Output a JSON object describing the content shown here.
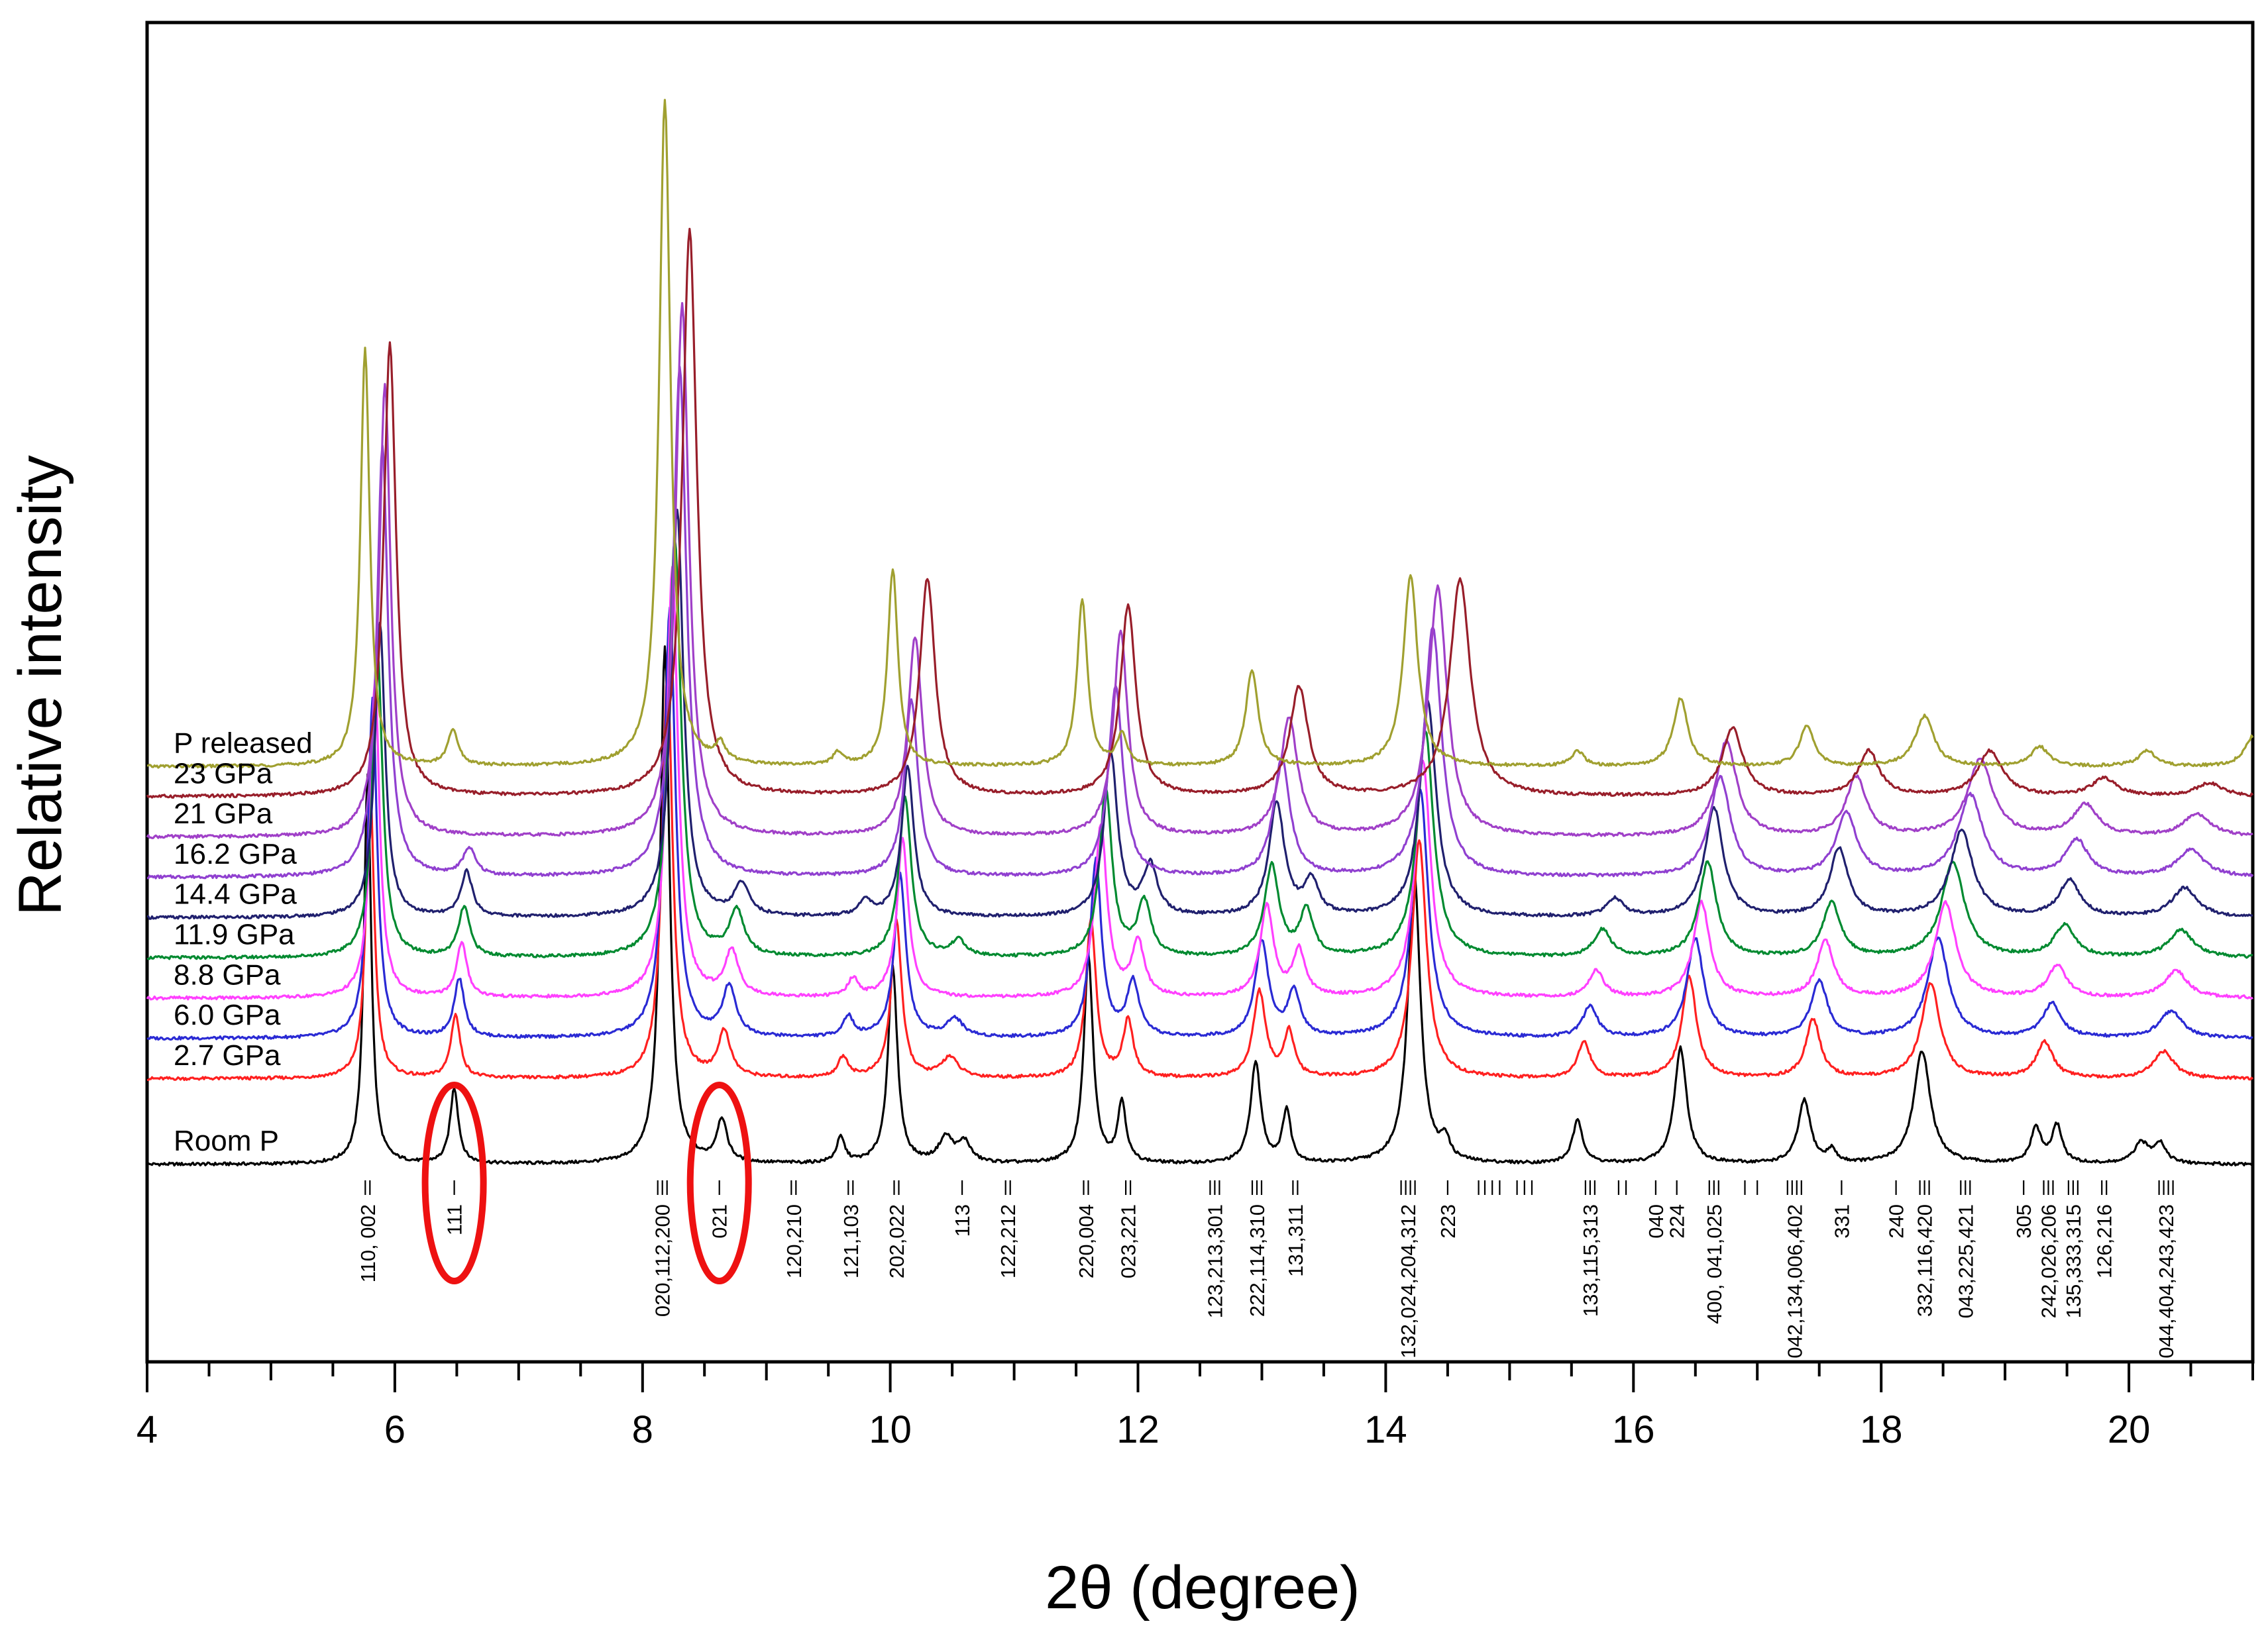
{
  "chart_data": {
    "type": "line",
    "title": "",
    "xlabel": "2θ (degree)",
    "ylabel": "Relative intensity",
    "xlim": [
      4,
      21
    ],
    "x_ticks": [
      4,
      6,
      8,
      10,
      12,
      14,
      16,
      18,
      20
    ],
    "grid": false,
    "legend": "inline-left",
    "y_units": "arbitrary (stacked, offset per trace)",
    "series": [
      {
        "name": "Room P",
        "color": "#000000",
        "offset": 0,
        "scale": 1.0,
        "peaks": [
          [
            5.78,
            1.55,
            0.035
          ],
          [
            6.48,
            0.3,
            0.04
          ],
          [
            8.18,
            2.05,
            0.045
          ],
          [
            8.64,
            0.17,
            0.05
          ],
          [
            9.6,
            0.1,
            0.04
          ],
          [
            10.02,
            0.78,
            0.045
          ],
          [
            10.45,
            0.1,
            0.07
          ],
          [
            10.6,
            0.08,
            0.06
          ],
          [
            11.6,
            0.82,
            0.045
          ],
          [
            11.87,
            0.24,
            0.04
          ],
          [
            12.95,
            0.4,
            0.05
          ],
          [
            13.2,
            0.21,
            0.04
          ],
          [
            14.23,
            1.16,
            0.06
          ],
          [
            14.48,
            0.08,
            0.04
          ],
          [
            15.55,
            0.17,
            0.05
          ],
          [
            16.38,
            0.46,
            0.06
          ],
          [
            17.38,
            0.25,
            0.06
          ],
          [
            17.6,
            0.05,
            0.04
          ],
          [
            18.33,
            0.45,
            0.08
          ],
          [
            19.25,
            0.14,
            0.05
          ],
          [
            19.42,
            0.15,
            0.05
          ],
          [
            20.1,
            0.08,
            0.07
          ],
          [
            20.25,
            0.08,
            0.06
          ]
        ]
      },
      {
        "name": "2.7 GPa",
        "color": "#ff2020",
        "offset": 0.34,
        "scale": 0.9,
        "peaks": [
          [
            5.8,
            1.3,
            0.04
          ],
          [
            6.49,
            0.28,
            0.045
          ],
          [
            8.2,
            1.8,
            0.05
          ],
          [
            8.66,
            0.2,
            0.06
          ],
          [
            9.62,
            0.09,
            0.05
          ],
          [
            10.05,
            0.7,
            0.05
          ],
          [
            10.48,
            0.09,
            0.08
          ],
          [
            11.62,
            0.7,
            0.05
          ],
          [
            11.92,
            0.25,
            0.05
          ],
          [
            12.98,
            0.38,
            0.06
          ],
          [
            13.22,
            0.2,
            0.05
          ],
          [
            14.27,
            1.05,
            0.07
          ],
          [
            15.6,
            0.16,
            0.06
          ],
          [
            16.45,
            0.45,
            0.07
          ],
          [
            17.45,
            0.26,
            0.07
          ],
          [
            18.4,
            0.42,
            0.09
          ],
          [
            19.32,
            0.16,
            0.08
          ],
          [
            20.28,
            0.12,
            0.1
          ]
        ]
      },
      {
        "name": "6.0 GPa",
        "color": "#2a2ad4",
        "offset": 0.5,
        "scale": 0.9,
        "peaks": [
          [
            5.82,
            1.5,
            0.045
          ],
          [
            6.52,
            0.26,
            0.05
          ],
          [
            8.22,
            1.9,
            0.055
          ],
          [
            8.7,
            0.22,
            0.065
          ],
          [
            9.66,
            0.09,
            0.05
          ],
          [
            10.08,
            0.72,
            0.055
          ],
          [
            10.52,
            0.08,
            0.08
          ],
          [
            11.66,
            0.78,
            0.055
          ],
          [
            11.96,
            0.24,
            0.06
          ],
          [
            13.0,
            0.42,
            0.065
          ],
          [
            13.26,
            0.2,
            0.06
          ],
          [
            14.28,
            1.1,
            0.075
          ],
          [
            15.65,
            0.14,
            0.07
          ],
          [
            16.5,
            0.44,
            0.08
          ],
          [
            17.5,
            0.25,
            0.08
          ],
          [
            18.46,
            0.44,
            0.1
          ],
          [
            19.38,
            0.15,
            0.09
          ],
          [
            20.34,
            0.12,
            0.11
          ]
        ]
      },
      {
        "name": "8.8 GPa",
        "color": "#ff40ff",
        "offset": 0.66,
        "scale": 0.9,
        "peaks": [
          [
            5.84,
            1.4,
            0.045
          ],
          [
            6.54,
            0.24,
            0.05
          ],
          [
            8.24,
            1.9,
            0.055
          ],
          [
            8.72,
            0.2,
            0.065
          ],
          [
            9.7,
            0.08,
            0.05
          ],
          [
            10.1,
            0.7,
            0.055
          ],
          [
            11.7,
            0.76,
            0.06
          ],
          [
            12.0,
            0.24,
            0.06
          ],
          [
            13.04,
            0.4,
            0.065
          ],
          [
            13.3,
            0.2,
            0.06
          ],
          [
            14.3,
            1.05,
            0.075
          ],
          [
            15.7,
            0.12,
            0.07
          ],
          [
            16.55,
            0.42,
            0.08
          ],
          [
            17.55,
            0.25,
            0.08
          ],
          [
            18.52,
            0.42,
            0.1
          ],
          [
            19.42,
            0.14,
            0.09
          ],
          [
            20.38,
            0.12,
            0.11
          ]
        ]
      },
      {
        "name": "11.9 GPa",
        "color": "#008a30",
        "offset": 0.82,
        "scale": 0.9,
        "peaks": [
          [
            5.86,
            1.35,
            0.05
          ],
          [
            6.56,
            0.22,
            0.055
          ],
          [
            8.26,
            1.85,
            0.06
          ],
          [
            8.76,
            0.2,
            0.07
          ],
          [
            10.12,
            0.7,
            0.06
          ],
          [
            10.55,
            0.07,
            0.07
          ],
          [
            11.74,
            0.74,
            0.06
          ],
          [
            12.05,
            0.24,
            0.065
          ],
          [
            13.08,
            0.4,
            0.07
          ],
          [
            13.36,
            0.2,
            0.065
          ],
          [
            14.32,
            1.0,
            0.08
          ],
          [
            15.75,
            0.12,
            0.08
          ],
          [
            16.6,
            0.42,
            0.085
          ],
          [
            17.6,
            0.24,
            0.085
          ],
          [
            18.58,
            0.42,
            0.11
          ],
          [
            19.48,
            0.14,
            0.1
          ],
          [
            20.42,
            0.12,
            0.12
          ]
        ]
      },
      {
        "name": "14.4 GPa",
        "color": "#20206e",
        "offset": 0.98,
        "scale": 0.9,
        "peaks": [
          [
            5.88,
            1.3,
            0.05
          ],
          [
            6.58,
            0.2,
            0.055
          ],
          [
            8.28,
            1.8,
            0.06
          ],
          [
            8.8,
            0.14,
            0.07
          ],
          [
            9.8,
            0.07,
            0.06
          ],
          [
            10.14,
            0.66,
            0.06
          ],
          [
            11.78,
            0.72,
            0.065
          ],
          [
            12.1,
            0.22,
            0.07
          ],
          [
            13.12,
            0.5,
            0.075
          ],
          [
            13.4,
            0.15,
            0.07
          ],
          [
            14.34,
            0.95,
            0.08
          ],
          [
            15.85,
            0.08,
            0.08
          ],
          [
            16.65,
            0.48,
            0.09
          ],
          [
            17.66,
            0.3,
            0.09
          ],
          [
            18.65,
            0.38,
            0.11
          ],
          [
            19.52,
            0.16,
            0.1
          ],
          [
            20.45,
            0.13,
            0.12
          ]
        ]
      },
      {
        "name": "16.2 GPa",
        "color": "#9040d0",
        "offset": 1.14,
        "scale": 0.9,
        "peaks": [
          [
            5.9,
            1.9,
            0.055
          ],
          [
            6.6,
            0.12,
            0.06
          ],
          [
            8.3,
            2.25,
            0.065
          ],
          [
            10.17,
            0.78,
            0.065
          ],
          [
            11.82,
            0.84,
            0.07
          ],
          [
            13.16,
            0.52,
            0.08
          ],
          [
            14.38,
            1.1,
            0.085
          ],
          [
            16.7,
            0.44,
            0.1
          ],
          [
            17.72,
            0.28,
            0.1
          ],
          [
            18.72,
            0.36,
            0.12
          ],
          [
            19.58,
            0.16,
            0.11
          ],
          [
            20.5,
            0.12,
            0.13
          ]
        ]
      },
      {
        "name": "21 GPa",
        "color": "#a040c8",
        "offset": 1.3,
        "scale": 0.9,
        "peaks": [
          [
            5.92,
            2.0,
            0.055
          ],
          [
            8.32,
            2.35,
            0.065
          ],
          [
            10.2,
            0.88,
            0.07
          ],
          [
            11.86,
            0.9,
            0.07
          ],
          [
            13.22,
            0.52,
            0.085
          ],
          [
            14.42,
            1.1,
            0.09
          ],
          [
            16.75,
            0.42,
            0.1
          ],
          [
            17.8,
            0.26,
            0.1
          ],
          [
            18.8,
            0.34,
            0.12
          ],
          [
            19.65,
            0.14,
            0.12
          ],
          [
            20.55,
            0.1,
            0.13
          ]
        ]
      },
      {
        "name": "23 GPa",
        "color": "#981e2a",
        "offset": 1.46,
        "scale": 0.9,
        "peaks": [
          [
            5.96,
            2.0,
            0.06
          ],
          [
            8.38,
            2.5,
            0.07
          ],
          [
            10.3,
            0.96,
            0.075
          ],
          [
            11.92,
            0.84,
            0.075
          ],
          [
            13.3,
            0.48,
            0.09
          ],
          [
            14.6,
            0.96,
            0.1
          ],
          [
            16.8,
            0.3,
            0.1
          ],
          [
            17.9,
            0.2,
            0.1
          ],
          [
            18.88,
            0.2,
            0.12
          ],
          [
            19.8,
            0.08,
            0.12
          ],
          [
            20.65,
            0.06,
            0.13
          ]
        ]
      },
      {
        "name": "P released",
        "color": "#a0a030",
        "offset": 1.58,
        "scale": 1.0,
        "peaks": [
          [
            5.76,
            1.66,
            0.045
          ],
          [
            6.47,
            0.14,
            0.05
          ],
          [
            8.18,
            2.65,
            0.055
          ],
          [
            8.63,
            0.07,
            0.05
          ],
          [
            9.58,
            0.05,
            0.05
          ],
          [
            10.02,
            0.78,
            0.05
          ],
          [
            11.55,
            0.66,
            0.05
          ],
          [
            11.87,
            0.12,
            0.05
          ],
          [
            12.92,
            0.38,
            0.06
          ],
          [
            14.2,
            0.76,
            0.07
          ],
          [
            15.55,
            0.06,
            0.06
          ],
          [
            16.38,
            0.27,
            0.07
          ],
          [
            17.4,
            0.16,
            0.07
          ],
          [
            18.35,
            0.2,
            0.09
          ],
          [
            19.28,
            0.08,
            0.08
          ],
          [
            20.15,
            0.06,
            0.09
          ],
          [
            21.0,
            0.12,
            0.08
          ]
        ]
      }
    ],
    "reflections": [
      {
        "x": 5.78,
        "label": "110, 002",
        "ticks": 2
      },
      {
        "x": 6.48,
        "label": "111",
        "ticks": 1,
        "highlighted": true
      },
      {
        "x": 8.16,
        "label": "020,112,200",
        "ticks": 3
      },
      {
        "x": 8.62,
        "label": "021",
        "ticks": 1,
        "highlighted": true
      },
      {
        "x": 9.22,
        "label": "120,210",
        "ticks": 2
      },
      {
        "x": 9.68,
        "label": "121,103",
        "ticks": 2
      },
      {
        "x": 10.05,
        "label": "202,022",
        "ticks": 2
      },
      {
        "x": 10.58,
        "label": "113",
        "ticks": 1
      },
      {
        "x": 10.95,
        "label": "122,212",
        "ticks": 2
      },
      {
        "x": 11.58,
        "label": "220,004",
        "ticks": 2
      },
      {
        "x": 11.92,
        "label": "023,221",
        "ticks": 2
      },
      {
        "x": 12.62,
        "label": "123,213,301",
        "ticks": 3
      },
      {
        "x": 12.96,
        "label": "222,114,310",
        "ticks": 3
      },
      {
        "x": 13.27,
        "label": "131,311",
        "ticks": 2
      },
      {
        "x": 14.18,
        "label": "132,024,204,312",
        "ticks": 4
      },
      {
        "x": 14.5,
        "label": "223",
        "ticks": 1
      },
      {
        "x": 15.65,
        "label": "133,115,313",
        "ticks": 3
      },
      {
        "x": 16.18,
        "label": "040",
        "ticks": 1
      },
      {
        "x": 16.35,
        "label": "224",
        "ticks": 1
      },
      {
        "x": 16.65,
        "label": "400, 041,025",
        "ticks": 3
      },
      {
        "x": 17.3,
        "label": "042,134,006,402",
        "ticks": 4
      },
      {
        "x": 17.68,
        "label": "331",
        "ticks": 1
      },
      {
        "x": 18.12,
        "label": "240",
        "ticks": 1
      },
      {
        "x": 18.35,
        "label": "332,116,420",
        "ticks": 3
      },
      {
        "x": 18.68,
        "label": "043,225,421",
        "ticks": 3
      },
      {
        "x": 19.15,
        "label": "305",
        "ticks": 1
      },
      {
        "x": 19.35,
        "label": "242,026,206",
        "ticks": 3
      },
      {
        "x": 19.55,
        "label": "135,333,315",
        "ticks": 3
      },
      {
        "x": 19.8,
        "label": "126,216",
        "ticks": 2
      },
      {
        "x": 20.3,
        "label": "044,404,243,423",
        "ticks": 4
      }
    ],
    "reflection_ticks_unlabeled": [
      14.75,
      14.8,
      14.86,
      14.92,
      15.06,
      15.12,
      15.18,
      15.88,
      15.94,
      16.9,
      17.0
    ],
    "highlight_color": "#ee1111"
  }
}
